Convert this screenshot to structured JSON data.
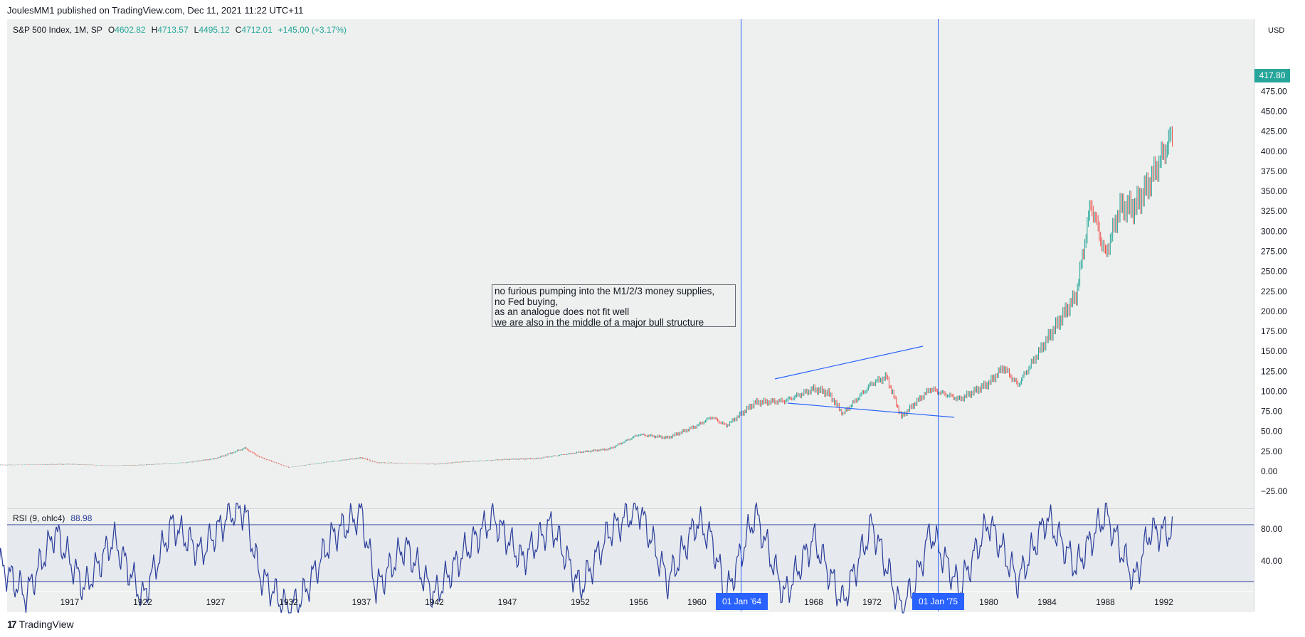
{
  "header": {
    "published": "JoulesMM1 published on TradingView.com, Dec 11, 2021 11:22 UTC+11"
  },
  "legend": {
    "symbol": "S&P 500 Index, 1M, SP",
    "open_label": "O",
    "open": "4602.82",
    "high_label": "H",
    "high": "4713.57",
    "low_label": "L",
    "low": "4495.12",
    "close_label": "C",
    "close": "4712.01",
    "change": "+145.00 (+3.17%)"
  },
  "rsi": {
    "label": "RSI (9, ohlc4)",
    "value": "88.98",
    "levels": [
      80,
      40
    ],
    "axis_labels": [
      "80.00",
      "40.00"
    ]
  },
  "note": {
    "lines": [
      "no furious pumping into the M1/2/3 money supplies,",
      "no Fed buying,",
      "as an analogue does not fit well",
      "we are also in the middle of a major bull structure"
    ]
  },
  "price_axis": {
    "labels": [
      "475.00",
      "450.00",
      "425.00",
      "400.00",
      "375.00",
      "350.00",
      "325.00",
      "300.00",
      "275.00",
      "250.00",
      "225.00",
      "200.00",
      "175.00",
      "150.00",
      "125.00",
      "100.00",
      "75.00",
      "50.00",
      "25.00",
      "0.00",
      "−25.00"
    ],
    "currency": "USD",
    "last_price": "417.80"
  },
  "time_axis": {
    "labels": [
      "1917",
      "1922",
      "1927",
      "1932",
      "1937",
      "1942",
      "1947",
      "1952",
      "1956",
      "1960",
      "1968",
      "1972",
      "1980",
      "1984",
      "1988",
      "1992"
    ]
  },
  "markers": {
    "left_date": "01 Jan '64",
    "right_date": "01 Jan '75"
  },
  "footer": {
    "brand": "TradingView",
    "logo": "17"
  },
  "colors": {
    "up": "#26a69a",
    "down": "#ef5350",
    "panel_bg": "#edf0ee",
    "marker": "#2962ff",
    "rsi_line": "#2a3d9a"
  },
  "chart_data": {
    "type": "candlestick",
    "series": [
      {
        "name": "S&P 500 Index, 1M, SP",
        "x": [
          1913,
          1917,
          1920,
          1922,
          1925,
          1927,
          1929,
          1930,
          1932,
          1934,
          1937,
          1938,
          1942,
          1944,
          1947,
          1949,
          1952,
          1954,
          1956,
          1958,
          1960,
          1961,
          1962,
          1964,
          1966,
          1968,
          1969,
          1970,
          1972,
          1973,
          1974,
          1975,
          1976,
          1978,
          1980,
          1981,
          1982,
          1984,
          1986,
          1987,
          1988,
          1989,
          1990,
          1991,
          1992.5
        ],
        "y": [
          8,
          9,
          7,
          8,
          11,
          16,
          29,
          18,
          5,
          10,
          17,
          11,
          9,
          12,
          15,
          16,
          24,
          28,
          46,
          42,
          57,
          68,
          57,
          86,
          88,
          103,
          98,
          72,
          110,
          118,
          68,
          86,
          103,
          90,
          110,
          130,
          108,
          165,
          220,
          335,
          270,
          330,
          330,
          360,
          417.8
        ]
      },
      {
        "name": "RSI (9, ohlc4)",
        "x": [
          1912,
          1914,
          1916,
          1918,
          1920,
          1922,
          1924,
          1926,
          1928,
          1929,
          1930,
          1932,
          1933,
          1935,
          1937,
          1938,
          1940,
          1942,
          1944,
          1946,
          1948,
          1950,
          1952,
          1954,
          1956,
          1958,
          1960,
          1961,
          1962,
          1964,
          1966,
          1968,
          1970,
          1972,
          1974,
          1975,
          1976,
          1978,
          1980,
          1982,
          1984,
          1986,
          1988,
          1990,
          1991,
          1992.5
        ],
        "y": [
          55,
          30,
          75,
          35,
          70,
          28,
          80,
          60,
          88,
          90,
          45,
          20,
          30,
          72,
          88,
          35,
          65,
          30,
          60,
          85,
          55,
          80,
          35,
          75,
          92,
          40,
          82,
          70,
          30,
          88,
          30,
          70,
          25,
          80,
          20,
          40,
          75,
          35,
          82,
          40,
          85,
          50,
          88,
          40,
          75,
          75
        ]
      }
    ],
    "xlabel": "",
    "ylabel": "USD",
    "ylim": [
      -35,
      478
    ],
    "rsi_levels": [
      80,
      40
    ],
    "annotations": [
      "no furious pumping into the M1/2/3 money supplies,",
      "no Fed buying,",
      "as an analogue does not fit well",
      "we are also in the middle of a major bull structure"
    ]
  }
}
